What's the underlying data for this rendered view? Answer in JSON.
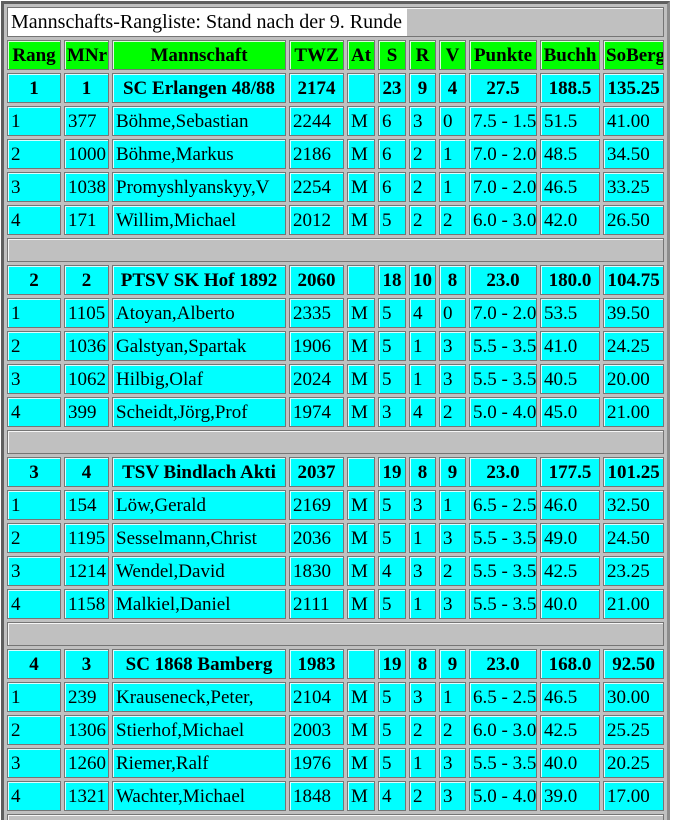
{
  "title": "Mannschafts-Rangliste: Stand nach der 9. Runde",
  "columns": [
    "Rang",
    "MNr",
    "Mannschaft",
    "TWZ",
    "At",
    "S",
    "R",
    "V",
    "Punkte",
    "Buchh",
    "SoBerg"
  ],
  "colors": {
    "header_bg": "#00FF00",
    "row_bg": "#00FFFF",
    "spacer_bg": "#C0C0C0",
    "title_text_bg": "#FFFFFF"
  },
  "teams": [
    {
      "summary": [
        "1",
        "1",
        "SC Erlangen 48/88",
        "2174",
        "",
        "23",
        "9",
        "4",
        "27.5",
        "188.5",
        "135.25"
      ],
      "players": [
        [
          "1",
          "377",
          "Böhme,Sebastian",
          "2244",
          "M",
          "6",
          "3",
          "0",
          "7.5 - 1.5",
          "51.5",
          "41.00"
        ],
        [
          "2",
          "1000",
          "Böhme,Markus",
          "2186",
          "M",
          "6",
          "2",
          "1",
          "7.0 - 2.0",
          "48.5",
          "34.50"
        ],
        [
          "3",
          "1038",
          "Promyshlyanskyy,V",
          "2254",
          "M",
          "6",
          "2",
          "1",
          "7.0 - 2.0",
          "46.5",
          "33.25"
        ],
        [
          "4",
          "171",
          "Willim,Michael",
          "2012",
          "M",
          "5",
          "2",
          "2",
          "6.0 - 3.0",
          "42.0",
          "26.50"
        ]
      ]
    },
    {
      "summary": [
        "2",
        "2",
        "PTSV SK Hof 1892",
        "2060",
        "",
        "18",
        "10",
        "8",
        "23.0",
        "180.0",
        "104.75"
      ],
      "players": [
        [
          "1",
          "1105",
          "Atoyan,Alberto",
          "2335",
          "M",
          "5",
          "4",
          "0",
          "7.0 - 2.0",
          "53.5",
          "39.50"
        ],
        [
          "2",
          "1036",
          "Galstyan,Spartak",
          "1906",
          "M",
          "5",
          "1",
          "3",
          "5.5 - 3.5",
          "41.0",
          "24.25"
        ],
        [
          "3",
          "1062",
          "Hilbig,Olaf",
          "2024",
          "M",
          "5",
          "1",
          "3",
          "5.5 - 3.5",
          "40.5",
          "20.00"
        ],
        [
          "4",
          "399",
          "Scheidt,Jörg,Prof",
          "1974",
          "M",
          "3",
          "4",
          "2",
          "5.0 - 4.0",
          "45.0",
          "21.00"
        ]
      ]
    },
    {
      "summary": [
        "3",
        "4",
        "TSV Bindlach Akti",
        "2037",
        "",
        "19",
        "8",
        "9",
        "23.0",
        "177.5",
        "101.25"
      ],
      "players": [
        [
          "1",
          "154",
          "Löw,Gerald",
          "2169",
          "M",
          "5",
          "3",
          "1",
          "6.5 - 2.5",
          "46.0",
          "32.50"
        ],
        [
          "2",
          "1195",
          "Sesselmann,Christ",
          "2036",
          "M",
          "5",
          "1",
          "3",
          "5.5 - 3.5",
          "49.0",
          "24.50"
        ],
        [
          "3",
          "1214",
          "Wendel,David",
          "1830",
          "M",
          "4",
          "3",
          "2",
          "5.5 - 3.5",
          "42.5",
          "23.25"
        ],
        [
          "4",
          "1158",
          "Malkiel,Daniel",
          "2111",
          "M",
          "5",
          "1",
          "3",
          "5.5 - 3.5",
          "40.0",
          "21.00"
        ]
      ]
    },
    {
      "summary": [
        "4",
        "3",
        "SC 1868 Bamberg",
        "1983",
        "",
        "19",
        "8",
        "9",
        "23.0",
        "168.0",
        "92.50"
      ],
      "players": [
        [
          "1",
          "239",
          "Krauseneck,Peter,",
          "2104",
          "M",
          "5",
          "3",
          "1",
          "6.5 - 2.5",
          "46.5",
          "30.00"
        ],
        [
          "2",
          "1306",
          "Stierhof,Michael",
          "2003",
          "M",
          "5",
          "2",
          "2",
          "6.0 - 3.0",
          "42.5",
          "25.25"
        ],
        [
          "3",
          "1260",
          "Riemer,Ralf",
          "1976",
          "M",
          "5",
          "1",
          "3",
          "5.5 - 3.5",
          "40.0",
          "20.25"
        ],
        [
          "4",
          "1321",
          "Wachter,Michael",
          "1848",
          "M",
          "4",
          "2",
          "3",
          "5.0 - 4.0",
          "39.0",
          "17.00"
        ]
      ]
    }
  ]
}
